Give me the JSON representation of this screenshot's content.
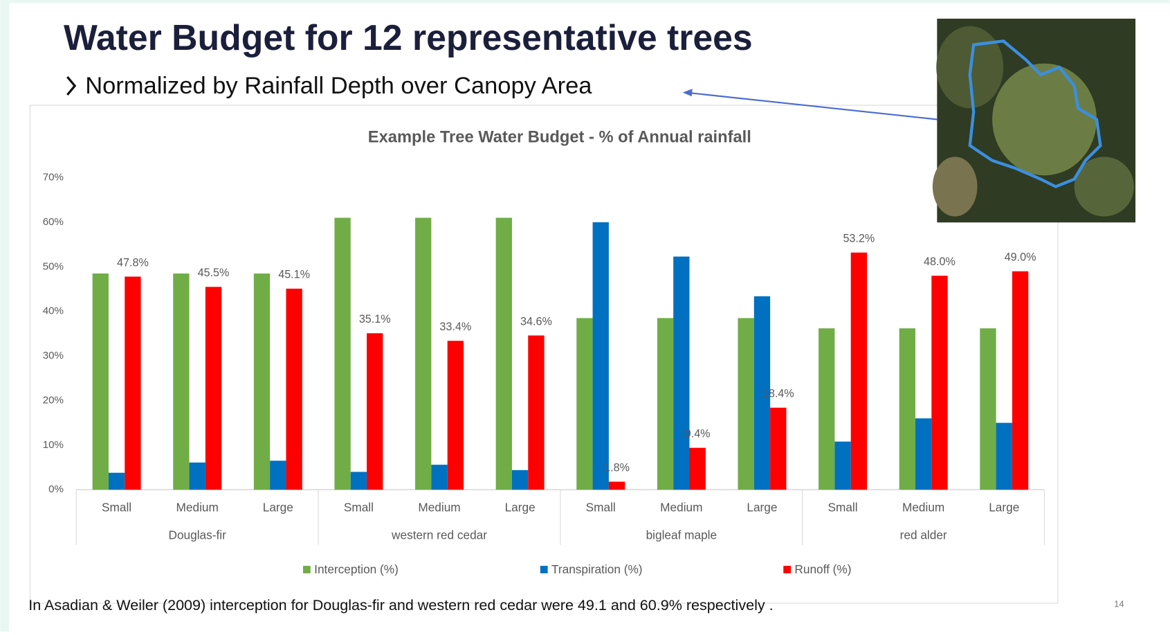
{
  "slide": {
    "title": "Water Budget for 12 representative trees",
    "subtitle": "Normalized by Rainfall Depth over Canopy Area",
    "footnote": "In Asadian & Weiler (2009) interception for Douglas-fir and western red cedar were 49.1 and 60.9% respectively .",
    "page_number": "14"
  },
  "chart_data": {
    "type": "bar",
    "title": "Example Tree Water Budget - % of Annual rainfall",
    "categories": [
      "Small",
      "Medium",
      "Large",
      "Small",
      "Medium",
      "Large",
      "Small",
      "Medium",
      "Large",
      "Small",
      "Medium",
      "Large"
    ],
    "category_groups": [
      "Douglas-fir",
      "western red cedar",
      "bigleaf maple",
      "red alder"
    ],
    "series": [
      {
        "name": "Interception (%)",
        "color": "#70ad47",
        "values": [
          48.5,
          48.5,
          48.5,
          61,
          61,
          61,
          38.5,
          38.5,
          38.5,
          36.2,
          36.2,
          36.2
        ]
      },
      {
        "name": "Transpiration (%)",
        "color": "#0070c0",
        "values": [
          3.8,
          6.1,
          6.5,
          4,
          5.6,
          4.4,
          60,
          52.3,
          43.4,
          10.8,
          16,
          15
        ]
      },
      {
        "name": "Runoff (%)",
        "color": "#ff0000",
        "values": [
          47.8,
          45.5,
          45.1,
          35.1,
          33.4,
          34.6,
          1.8,
          9.4,
          18.4,
          53.2,
          48.0,
          49.0
        ],
        "value_labels": [
          "47.8%",
          "45.5%",
          "45.1%",
          "35.1%",
          "33.4%",
          "34.6%",
          "1.8%",
          "9.4%",
          "18.4%",
          "53.2%",
          "48.0%",
          "49.0%"
        ]
      }
    ],
    "ylim": [
      0,
      70
    ],
    "yticks": [
      {
        "value": 0,
        "label": "0%"
      },
      {
        "value": 10,
        "label": "10%"
      },
      {
        "value": 20,
        "label": "20%"
      },
      {
        "value": 30,
        "label": "30%"
      },
      {
        "value": 40,
        "label": "40%"
      },
      {
        "value": 50,
        "label": "50%"
      },
      {
        "value": 60,
        "label": "60%"
      },
      {
        "value": 70,
        "label": "70%"
      }
    ],
    "grid": false,
    "legend": "bottom"
  }
}
